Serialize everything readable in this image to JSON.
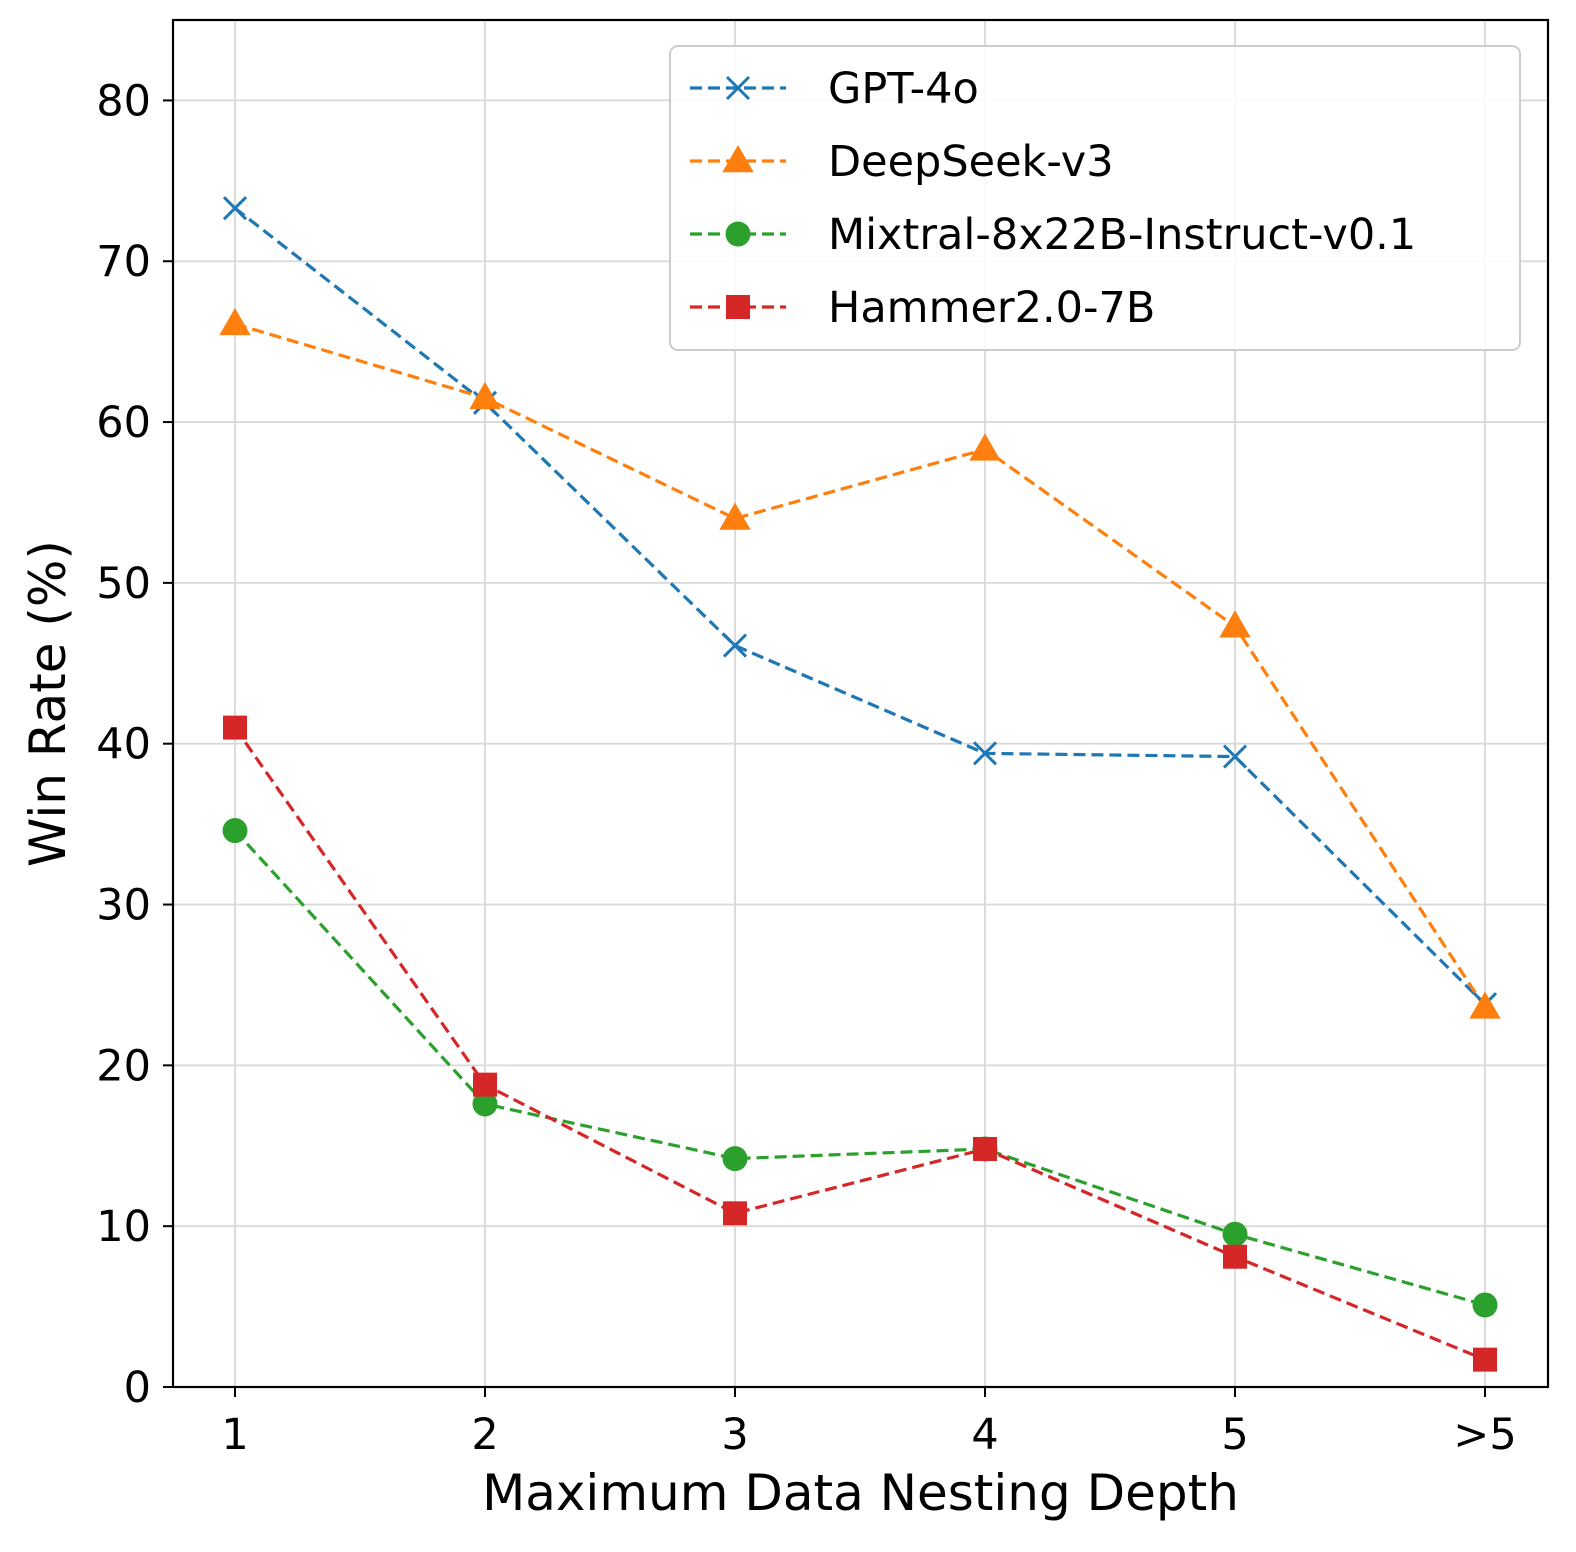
{
  "chart_data": {
    "type": "line",
    "title": "",
    "xlabel": "Maximum Data Nesting Depth",
    "ylabel": "Win Rate (%)",
    "categories": [
      "1",
      "2",
      "3",
      "4",
      "5",
      ">5"
    ],
    "ylim": [
      0,
      85
    ],
    "yticks": [
      0,
      10,
      20,
      30,
      40,
      50,
      60,
      70,
      80
    ],
    "grid": true,
    "legend_position": "top-right",
    "series": [
      {
        "name": "GPT-4o",
        "color": "#1f77b4",
        "marker": "x",
        "values": [
          73.3,
          61.2,
          46.1,
          39.4,
          39.2,
          23.8
        ]
      },
      {
        "name": "DeepSeek-v3",
        "color": "#ff7f0e",
        "marker": "triangle",
        "values": [
          66.1,
          61.5,
          54.0,
          58.3,
          47.3,
          23.6
        ]
      },
      {
        "name": "Mixtral-8x22B-Instruct-v0.1",
        "color": "#2ca02c",
        "marker": "circle",
        "values": [
          34.6,
          17.6,
          14.2,
          14.8,
          9.5,
          5.1
        ]
      },
      {
        "name": "Hammer2.0-7B",
        "color": "#d62728",
        "marker": "square",
        "values": [
          41.0,
          18.8,
          10.8,
          14.8,
          8.1,
          1.7
        ]
      }
    ]
  }
}
